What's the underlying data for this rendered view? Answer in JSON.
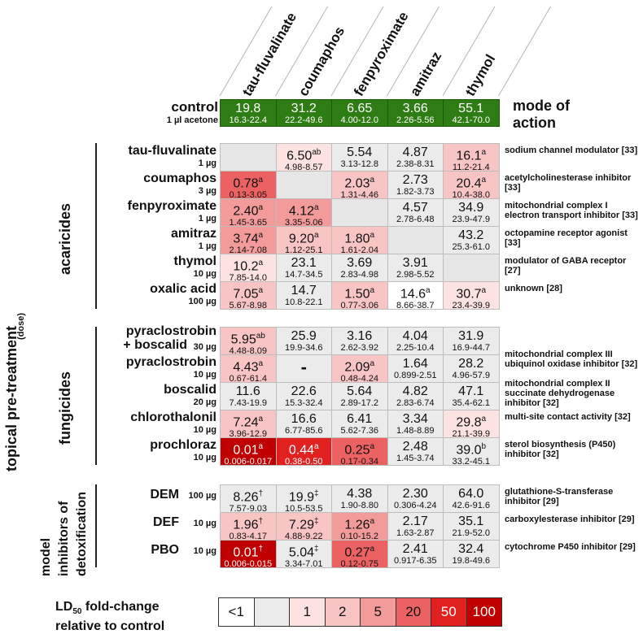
{
  "chart_data": {
    "type": "heatmap",
    "columns": [
      "tau-fluvalinate",
      "coumaphos",
      "fenpyroximate",
      "amitraz",
      "thymol"
    ],
    "control": {
      "name": "control",
      "dose": "1 µl acetone",
      "values": [
        "19.8",
        "31.2",
        "6.65",
        "3.66",
        "55.1"
      ],
      "ci": [
        "16.3-22.4",
        "22.2-49.6",
        "4.00-12.0",
        "2.26-5.56",
        "42.1-70.0"
      ]
    },
    "mode_of_action_header": "mode of action",
    "groups": [
      {
        "label": "acaricides",
        "rows": [
          {
            "name": "tau-fluvalinate",
            "dose": "1 µg",
            "cells": [
              null,
              {
                "v": "6.50",
                "s": "ab",
                "ci": "4.98-8.57",
                "f": "1"
              },
              {
                "v": "5.54",
                "s": "",
                "ci": "3.13-12.8",
                "f": "nc"
              },
              {
                "v": "4.87",
                "s": "",
                "ci": "2.38-8.31",
                "f": "nc"
              },
              {
                "v": "16.1",
                "s": "a",
                "ci": "11.2-21.4",
                "f": "2"
              }
            ],
            "moa": "sodium channel modulator [33]"
          },
          {
            "name": "coumaphos",
            "dose": "3 µg",
            "cells": [
              {
                "v": "0.78",
                "s": "a",
                "ci": "0.13-3.05",
                "f": "20"
              },
              null,
              {
                "v": "2.03",
                "s": "a",
                "ci": "1.31-4.46",
                "f": "2"
              },
              {
                "v": "2.73",
                "s": "",
                "ci": "1.82-3.73",
                "f": "nc"
              },
              {
                "v": "20.4",
                "s": "a",
                "ci": "10.4-38.0",
                "f": "2"
              }
            ],
            "moa": "acetylcholinesterase inhibitor [33]"
          },
          {
            "name": "fenpyroximate",
            "dose": "1 µg",
            "cells": [
              {
                "v": "2.40",
                "s": "a",
                "ci": "1.45-3.65",
                "f": "5"
              },
              {
                "v": "4.12",
                "s": "a",
                "ci": "3.35-5.06",
                "f": "5"
              },
              null,
              {
                "v": "4.57",
                "s": "",
                "ci": "2.78-6.48",
                "f": "nc"
              },
              {
                "v": "34.9",
                "s": "",
                "ci": "23.9-47.9",
                "f": "nc"
              }
            ],
            "moa": "mitochondrial complex I electron transport inhibitor [33]"
          },
          {
            "name": "amitraz",
            "dose": "1 µg",
            "cells": [
              {
                "v": "3.74",
                "s": "a",
                "ci": "2.14-7.08",
                "f": "5"
              },
              {
                "v": "9.20",
                "s": "a",
                "ci": "1.12-25.1",
                "f": "2"
              },
              {
                "v": "1.80",
                "s": "a",
                "ci": "1.61-2.04",
                "f": "2"
              },
              null,
              {
                "v": "43.2",
                "s": "",
                "ci": "25.3-61.0",
                "f": "nc"
              }
            ],
            "moa": "octopamine receptor agonist [33]"
          },
          {
            "name": "thymol",
            "dose": "10 µg",
            "cells": [
              {
                "v": "10.2",
                "s": "a",
                "ci": "7.85-14.0",
                "f": "1"
              },
              {
                "v": "23.1",
                "s": "",
                "ci": "14.7-34.5",
                "f": "nc"
              },
              {
                "v": "3.69",
                "s": "",
                "ci": "2.83-4.98",
                "f": "nc"
              },
              {
                "v": "3.91",
                "s": "",
                "ci": "2.98-5.52",
                "f": "nc"
              },
              null
            ],
            "moa": "modulator of GABA receptor [27]"
          },
          {
            "name": "oxalic acid",
            "dose": "100 µg",
            "cells": [
              {
                "v": "7.05",
                "s": "a",
                "ci": "5.67-8.98",
                "f": "2"
              },
              {
                "v": "14.7",
                "s": "",
                "ci": "10.8-22.1",
                "f": "nc"
              },
              {
                "v": "1.50",
                "s": "a",
                "ci": "0.77-3.06",
                "f": "2"
              },
              {
                "v": "14.6",
                "s": "a",
                "ci": "8.66-38.7",
                "f": "lt1"
              },
              {
                "v": "30.7",
                "s": "a",
                "ci": "23.4-39.9",
                "f": "1"
              }
            ],
            "moa": "unknown [28]"
          }
        ]
      },
      {
        "label": "fungicides",
        "rows": [
          {
            "name": "pyraclostrobin + boscalid",
            "name1": "pyraclostrobin",
            "name2": "+ boscalid",
            "dose": "30 µg",
            "cells": [
              {
                "v": "5.95",
                "s": "ab",
                "ci": "4.48-8.09",
                "f": "2"
              },
              {
                "v": "25.9",
                "s": "",
                "ci": "19.9-34.6",
                "f": "nc"
              },
              {
                "v": "3.16",
                "s": "",
                "ci": "2.62-3.92",
                "f": "nc"
              },
              {
                "v": "4.04",
                "s": "",
                "ci": "2.25-10.4",
                "f": "nc"
              },
              {
                "v": "31.9",
                "s": "",
                "ci": "16.9-44.7",
                "f": "nc"
              }
            ],
            "moa": ""
          },
          {
            "name": "pyraclostrobin",
            "dose": "10 µg",
            "cells": [
              {
                "v": "4.43",
                "s": "a",
                "ci": "0.67-61.4",
                "f": "2"
              },
              {
                "v": "-",
                "s": "",
                "ci": "",
                "f": "nc"
              },
              {
                "v": "2.09",
                "s": "a",
                "ci": "0.48-4.24",
                "f": "2"
              },
              {
                "v": "1.64",
                "s": "",
                "ci": "0.899-2.51",
                "f": "nc"
              },
              {
                "v": "28.2",
                "s": "",
                "ci": "4.96-57.9",
                "f": "nc"
              }
            ],
            "moa": "mitochondrial complex III ubiquinol oxidase inhibitor [32]"
          },
          {
            "name": "boscalid",
            "dose": "20 µg",
            "cells": [
              {
                "v": "11.6",
                "s": "",
                "ci": "7.43-19.9",
                "f": "nc"
              },
              {
                "v": "22.6",
                "s": "",
                "ci": "15.3-32.4",
                "f": "nc"
              },
              {
                "v": "5.64",
                "s": "",
                "ci": "2.89-17.2",
                "f": "nc"
              },
              {
                "v": "4.82",
                "s": "",
                "ci": "2.83-6.74",
                "f": "nc"
              },
              {
                "v": "47.1",
                "s": "",
                "ci": "35.4-62.1",
                "f": "nc"
              }
            ],
            "moa": "mitochondrial complex II succinate dehydrogenase inhibitor [32]"
          },
          {
            "name": "chlorothalonil",
            "dose": "10 µg",
            "cells": [
              {
                "v": "7.24",
                "s": "a",
                "ci": "3.96-12.9",
                "f": "2"
              },
              {
                "v": "16.6",
                "s": "",
                "ci": "6.77-85.6",
                "f": "nc"
              },
              {
                "v": "6.41",
                "s": "",
                "ci": "5.62-7.36",
                "f": "nc"
              },
              {
                "v": "3.34",
                "s": "",
                "ci": "1.48-8.89",
                "f": "nc"
              },
              {
                "v": "29.8",
                "s": "a",
                "ci": "21.1-39.9",
                "f": "1"
              }
            ],
            "moa": "multi-site contact activity [32]"
          },
          {
            "name": "prochloraz",
            "dose": "10 µg",
            "cells": [
              {
                "v": "0.01",
                "s": "a",
                "ci": "0.006-0.017",
                "f": "100"
              },
              {
                "v": "0.44",
                "s": "a",
                "ci": "0.38-0.50",
                "f": "50"
              },
              {
                "v": "0.25",
                "s": "a",
                "ci": "0.17-0.34",
                "f": "20"
              },
              {
                "v": "2.48",
                "s": "",
                "ci": "1.45-3.74",
                "f": "nc"
              },
              {
                "v": "39.0",
                "s": "b",
                "ci": "33.2-45.1",
                "f": "nc"
              }
            ],
            "moa": "sterol biosynthesis (P450) inhibitor [32]"
          }
        ]
      },
      {
        "label": "model inhibitors of detoxification",
        "label1": "model",
        "label2": "inhibitors of",
        "label3": "detoxification",
        "rows": [
          {
            "name": "DEM",
            "dose": "100 µg",
            "cells": [
              {
                "v": "8.26",
                "s": "†",
                "ci": "7.57-9.03",
                "f": "nc"
              },
              {
                "v": "19.9",
                "s": "‡",
                "ci": "10.5-53.5",
                "f": "nc"
              },
              {
                "v": "4.38",
                "s": "",
                "ci": "1.90-8.80",
                "f": "nc"
              },
              {
                "v": "2.30",
                "s": "",
                "ci": "0.306-4.24",
                "f": "nc"
              },
              {
                "v": "64.0",
                "s": "",
                "ci": "42.6-91.6",
                "f": "nc"
              }
            ],
            "moa": "glutathione-S-transferase inhibitor [29]"
          },
          {
            "name": "DEF",
            "dose": "10 µg",
            "cells": [
              {
                "v": "1.96",
                "s": "†",
                "ci": "0.83-4.17",
                "f": "2"
              },
              {
                "v": "7.29",
                "s": "‡",
                "ci": "4.88-9.22",
                "f": "2"
              },
              {
                "v": "1.26",
                "s": "a",
                "ci": "0.10-15.2",
                "f": "5"
              },
              {
                "v": "2.17",
                "s": "",
                "ci": "1.63-2.87",
                "f": "nc"
              },
              {
                "v": "35.1",
                "s": "",
                "ci": "21.9-52.0",
                "f": "nc"
              }
            ],
            "moa": "carboxylesterase inhibitor [29]"
          },
          {
            "name": "PBO",
            "dose": "10 µg",
            "cells": [
              {
                "v": "0.01",
                "s": "†",
                "ci": "0.006-0.015",
                "f": "100"
              },
              {
                "v": "5.04",
                "s": "‡",
                "ci": "3.34-7.01",
                "f": "nc"
              },
              {
                "v": "0.27",
                "s": "a",
                "ci": "0.12-0.75",
                "f": "20"
              },
              {
                "v": "2.41",
                "s": "",
                "ci": "0.917-6.35",
                "f": "nc"
              },
              {
                "v": "32.4",
                "s": "",
                "ci": "19.8-49.6",
                "f": "nc"
              }
            ],
            "moa": "cytochrome P450 inhibitor [29]"
          }
        ]
      }
    ],
    "row_axis_label": "topical pre-treatment",
    "row_axis_sublabel": "(dose)",
    "legend": {
      "title": "LD50 fold-change relative to control",
      "title_line1": "LD",
      "title_sub": "50",
      "title_line1_rest": " fold-change",
      "title_line2": "relative to control",
      "bins": [
        "<1",
        "",
        "1",
        "2",
        "5",
        "20",
        "50",
        "100"
      ]
    }
  },
  "colors": {
    "control": "#2e7d14",
    "lt1": "#ffffff",
    "nc": "#ebebeb",
    "1": "#fde2e2",
    "2": "#f9c4c4",
    "5": "#f39a9a",
    "20": "#ec6262",
    "50": "#e12020",
    "100": "#c00000",
    "empty": "#e6e6e6"
  }
}
